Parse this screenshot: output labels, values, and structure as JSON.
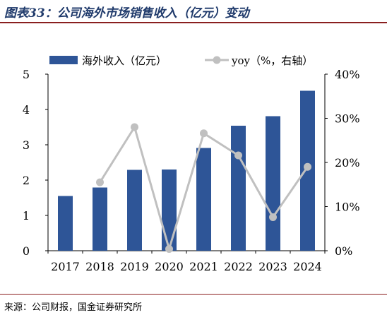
{
  "header": {
    "title": "图表33：公司海外市场销售收入（亿元）变动"
  },
  "footer": {
    "source": "来源：公司财报，国金证券研究所"
  },
  "colors": {
    "bar": "#2e5597",
    "line": "#c0c0c0",
    "axis": "#000000",
    "title": "#1f3a6b",
    "rule": "#8a1f1f"
  },
  "chart_data": {
    "type": "bar",
    "categories": [
      "2017",
      "2018",
      "2019",
      "2020",
      "2021",
      "2022",
      "2023",
      "2024"
    ],
    "series": [
      {
        "name": "海外收入（亿元）",
        "type": "bar",
        "axis": "left",
        "values": [
          1.55,
          1.79,
          2.29,
          2.3,
          2.91,
          3.54,
          3.81,
          4.53
        ]
      },
      {
        "name": "yoy（%，右轴）",
        "type": "line",
        "axis": "right",
        "values": [
          null,
          15.5,
          28.0,
          0.4,
          26.6,
          21.6,
          7.6,
          19.0
        ]
      }
    ],
    "y_left": {
      "ylim": [
        0,
        5
      ],
      "ticks": [
        "0",
        "1",
        "2",
        "3",
        "4",
        "5"
      ]
    },
    "y_right": {
      "ylim": [
        0,
        40
      ],
      "ticks": [
        "0%",
        "10%",
        "20%",
        "30%",
        "40%"
      ]
    },
    "legend": "top-center",
    "grid": false
  }
}
